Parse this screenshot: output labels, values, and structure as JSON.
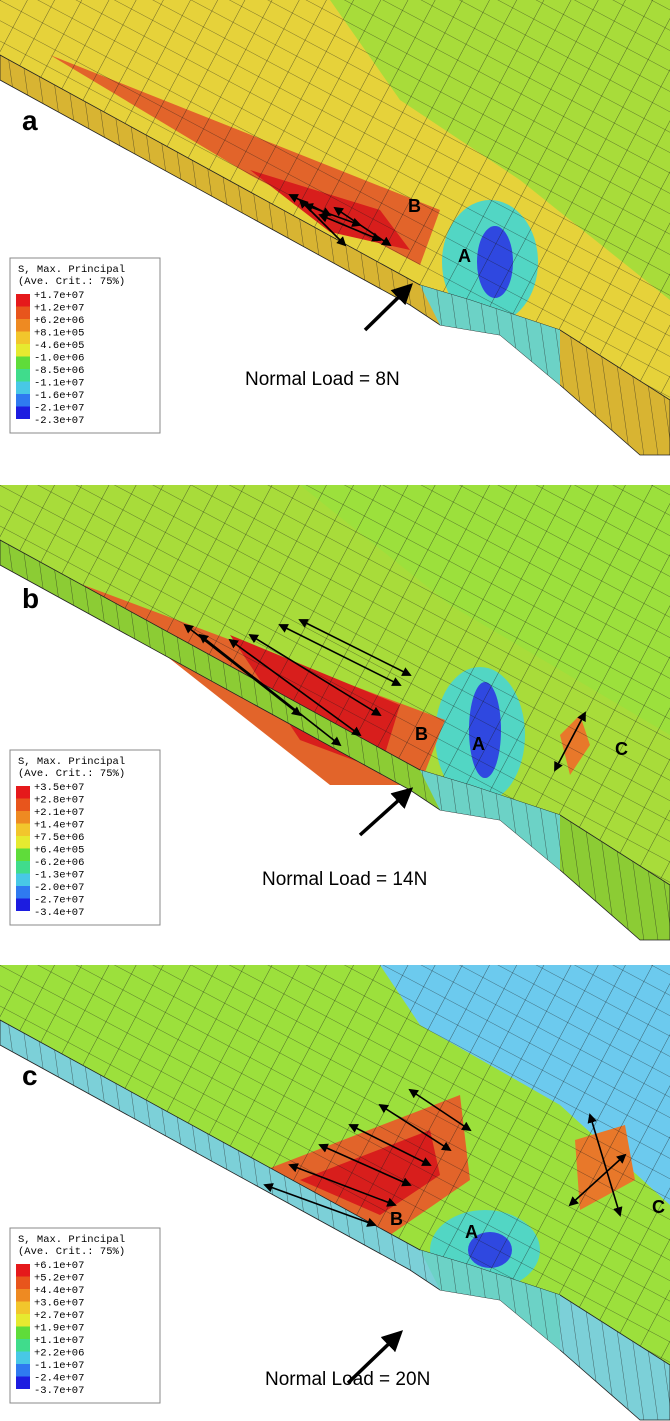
{
  "panels": [
    {
      "label": "a",
      "legend": {
        "title": "S, Max. Principal",
        "subtitle": "(Ave. Crit.: 75%)",
        "values": [
          "+1.7e+07",
          "+1.2e+07",
          "+6.2e+06",
          "+8.1e+05",
          "-4.6e+05",
          "-1.0e+06",
          "-8.5e+06",
          "-1.1e+07",
          "-1.6e+07",
          "-2.1e+07",
          "-2.3e+07"
        ]
      },
      "annotations": [
        "B",
        "A"
      ],
      "caption": "Normal Load = 8N"
    },
    {
      "label": "b",
      "legend": {
        "title": "S, Max. Principal",
        "subtitle": "(Ave. Crit.: 75%)",
        "values": [
          "+3.5e+07",
          "+2.8e+07",
          "+2.1e+07",
          "+1.4e+07",
          "+7.5e+06",
          "+6.4e+05",
          "-6.2e+06",
          "-1.3e+07",
          "-2.0e+07",
          "-2.7e+07",
          "-3.4e+07"
        ]
      },
      "annotations": [
        "B",
        "A",
        "C"
      ],
      "caption": "Normal Load = 14N"
    },
    {
      "label": "c",
      "legend": {
        "title": "S, Max. Principal",
        "subtitle": "(Ave. Crit.: 75%)",
        "values": [
          "+6.1e+07",
          "+5.2e+07",
          "+4.4e+07",
          "+3.6e+07",
          "+2.7e+07",
          "+1.9e+07",
          "+1.1e+07",
          "+2.2e+06",
          "-1.1e+07",
          "-2.4e+07",
          "-3.7e+07"
        ]
      },
      "annotations": [
        "B",
        "A",
        "C"
      ],
      "caption": "Normal Load = 20N"
    }
  ]
}
